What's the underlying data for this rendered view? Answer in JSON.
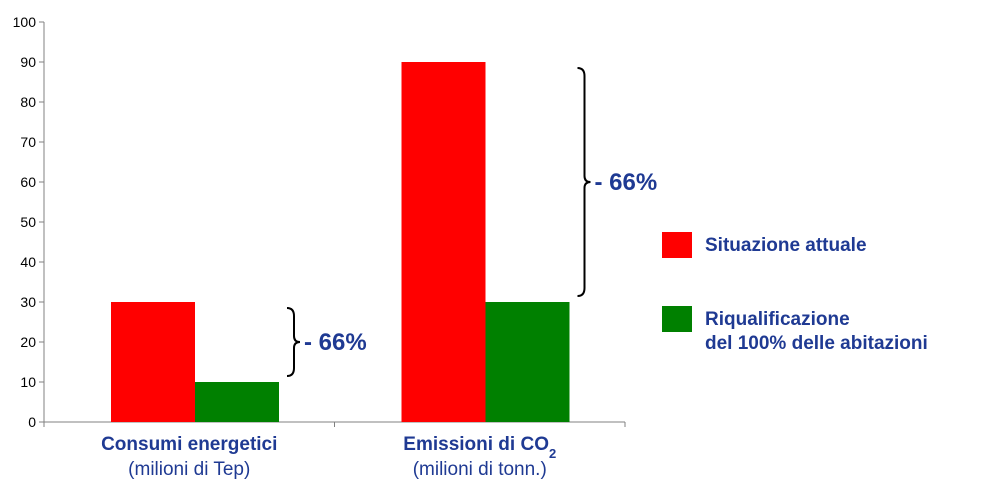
{
  "chart_data": {
    "type": "bar",
    "categories": [
      {
        "main": "Consumi energetici",
        "sub": "(milioni di Tep)"
      },
      {
        "main": "Emissioni di CO",
        "main_subscript": "2",
        "sub": "(milioni di tonn.)"
      }
    ],
    "series": [
      {
        "name": "Situazione attuale",
        "values": [
          30,
          90
        ],
        "color": "#ff0000"
      },
      {
        "name_lines": [
          "Riqualificazione",
          "del 100% delle abitazioni"
        ],
        "values": [
          10,
          30
        ],
        "color": "#008000"
      }
    ],
    "ylim": [
      0,
      100
    ],
    "yticks": [
      0,
      10,
      20,
      30,
      40,
      50,
      60,
      70,
      80,
      90,
      100
    ],
    "annotations": [
      {
        "text": "- 66%",
        "category": 0,
        "from": 10,
        "to": 30
      },
      {
        "text": "- 66%",
        "category": 1,
        "from": 30,
        "to": 90
      }
    ],
    "legend_position": "right",
    "grid": false,
    "axis_color": "#808080",
    "text_color": "#1f3a93"
  }
}
